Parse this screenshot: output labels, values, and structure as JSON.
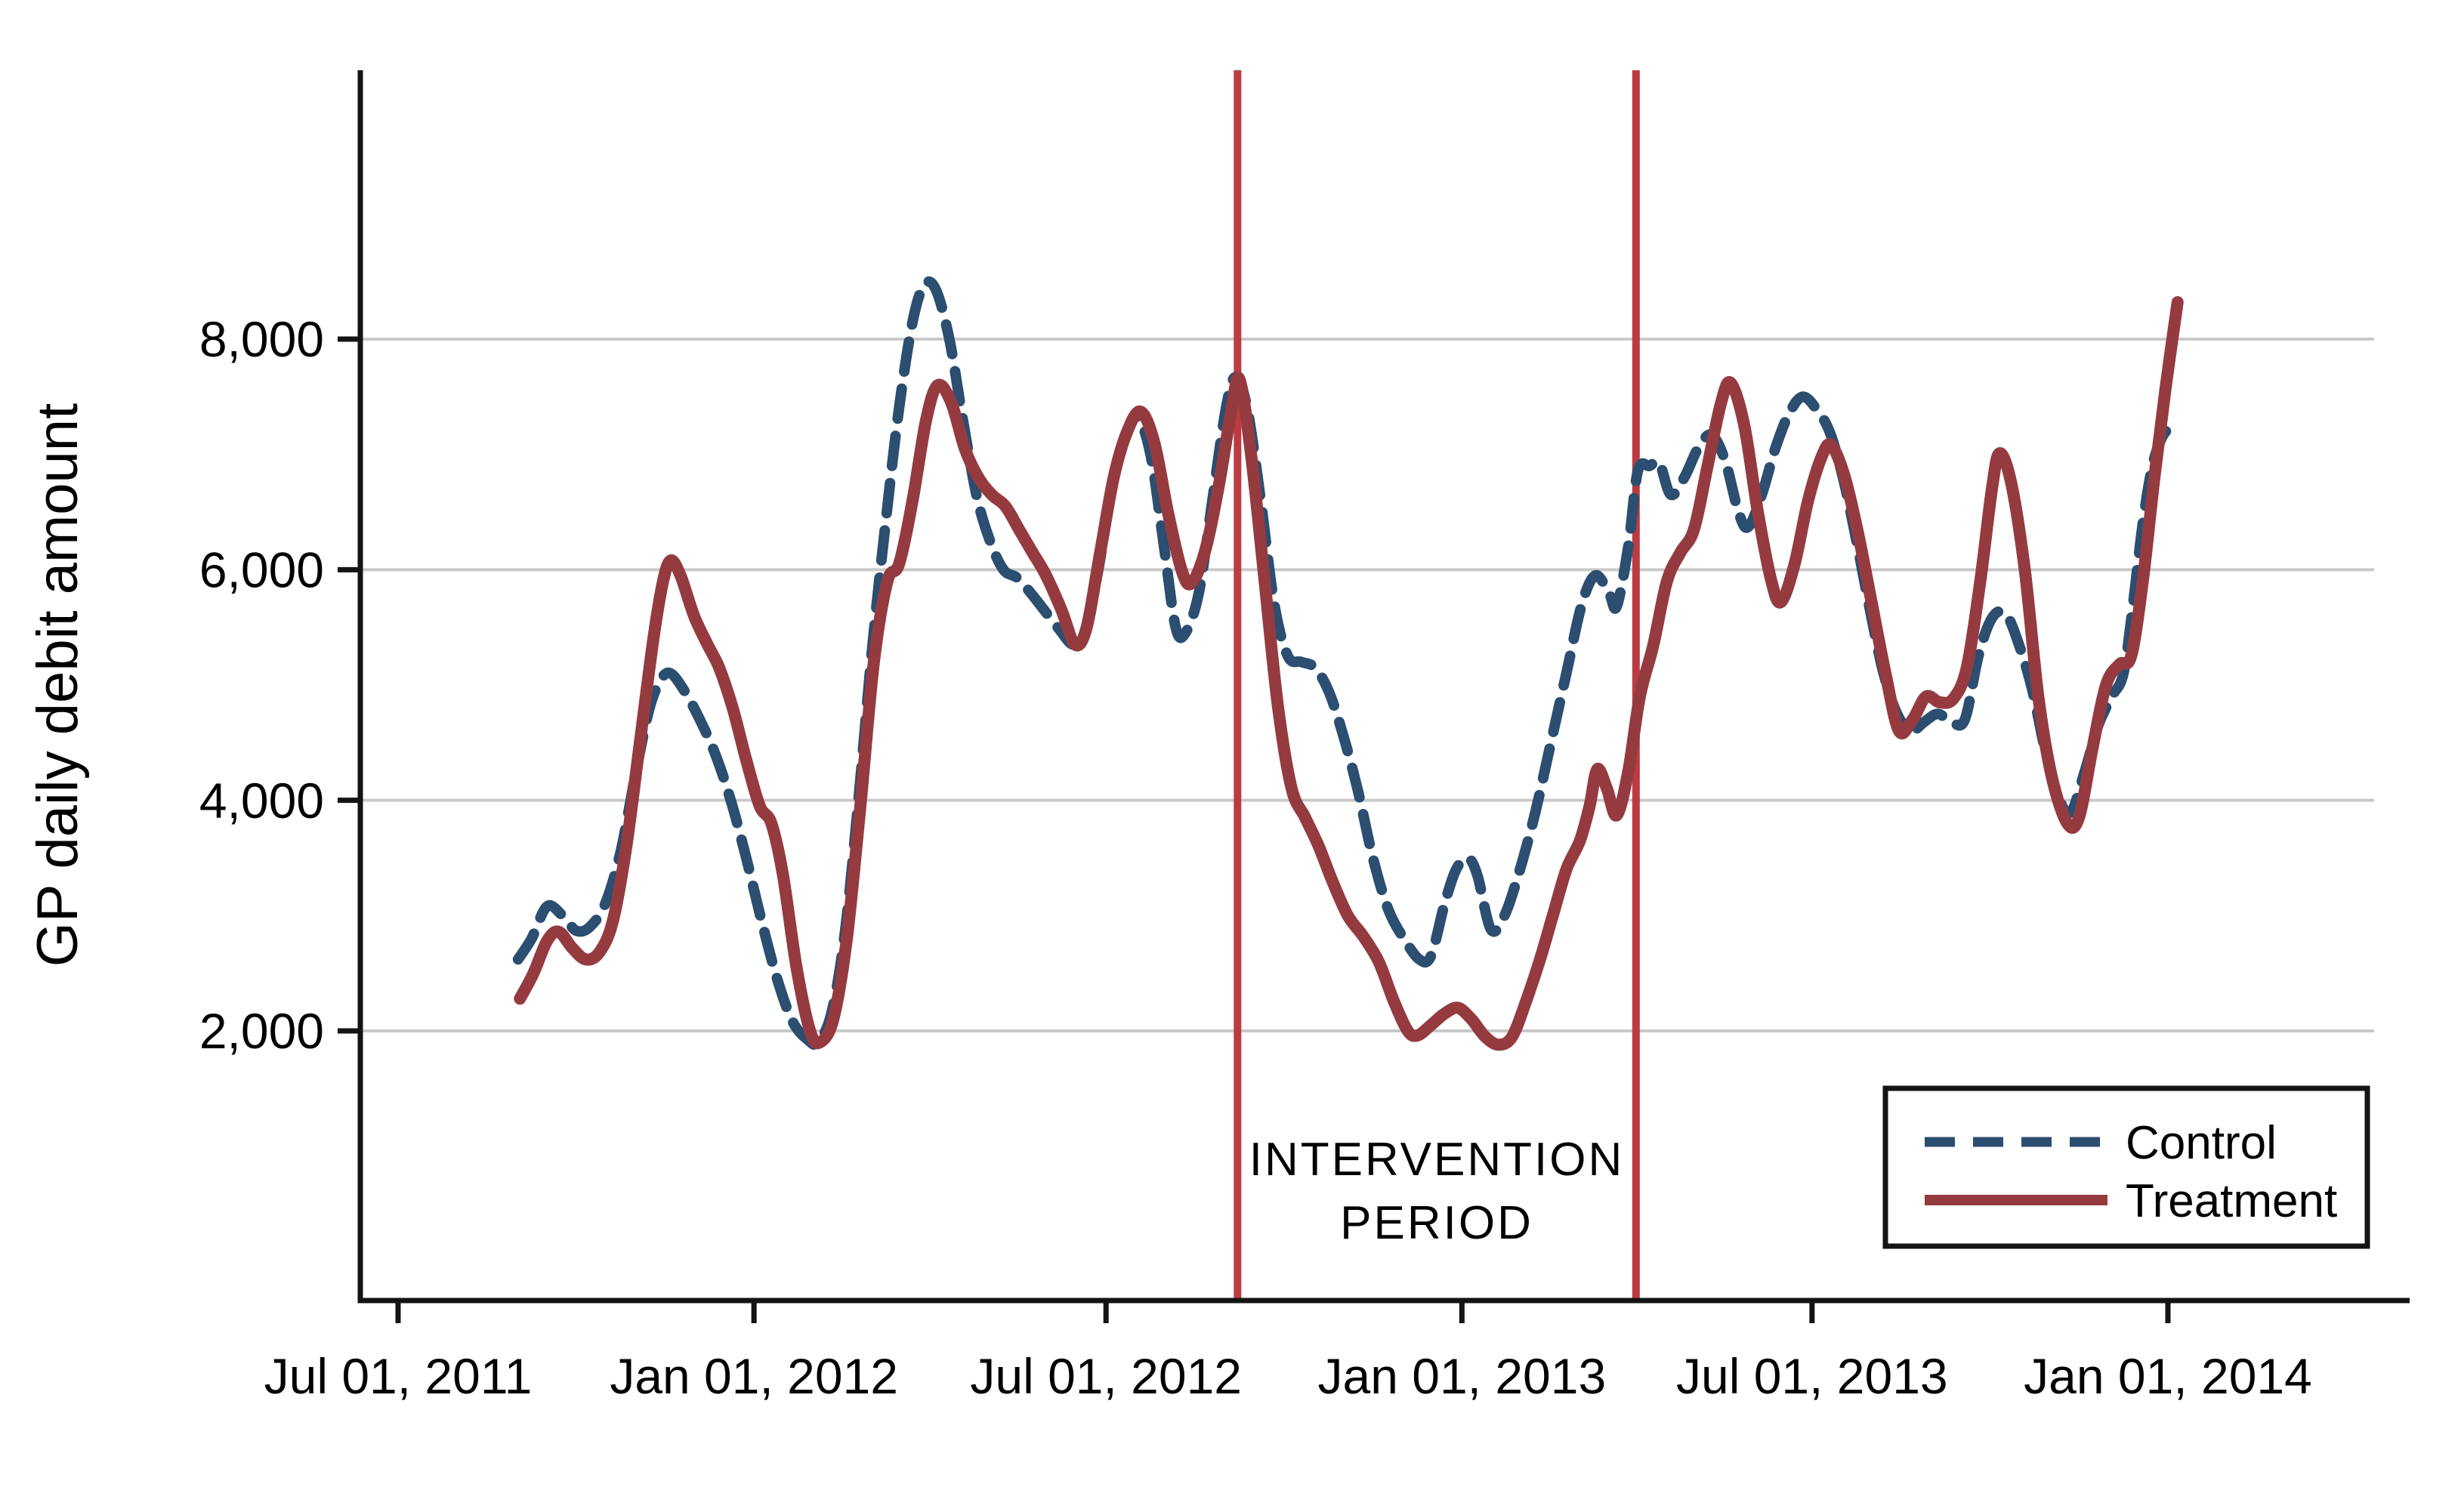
{
  "chart_data": {
    "type": "line",
    "title": "",
    "xlabel": "",
    "ylabel": "GP daily debit amount",
    "grid": "horizontal",
    "ylim": [
      -340,
      10330
    ],
    "x_domain": {
      "start": "2011-07-01",
      "end": "2014-01-01"
    },
    "y_ticks": [
      {
        "value": 2000,
        "label": "2,000"
      },
      {
        "value": 4000,
        "label": "4,000"
      },
      {
        "value": 6000,
        "label": "6,000"
      },
      {
        "value": 8000,
        "label": "8,000"
      }
    ],
    "x_ticks": [
      {
        "date": "2011-07-01",
        "label": "Jul 01, 2011"
      },
      {
        "date": "2012-01-01",
        "label": "Jan 01, 2012"
      },
      {
        "date": "2012-07-01",
        "label": "Jul 01, 2012"
      },
      {
        "date": "2013-01-01",
        "label": "Jan 01, 2013"
      },
      {
        "date": "2013-07-01",
        "label": "Jul 01, 2013"
      },
      {
        "date": "2014-01-01",
        "label": "Jan 01, 2014"
      }
    ],
    "colors": {
      "control": "#2b4e71",
      "treatment": "#953b40",
      "vline": "#bc3b42",
      "intervention_text": "#e23b2e",
      "gridline": "#c9c9c9",
      "axis": "#141414"
    },
    "intervention": {
      "label": "INTERVENTION PERIOD",
      "label_line1": "INTERVENTION",
      "label_line2": "PERIOD",
      "start_date": "2012-09-07",
      "end_date": "2013-04-01"
    },
    "legend": {
      "position": "bottom-right",
      "entries": [
        {
          "label": "Control",
          "style": "dashed",
          "color": "#2b4e71"
        },
        {
          "label": "Treatment",
          "style": "solid",
          "color": "#953b40"
        }
      ]
    },
    "series": [
      {
        "name": "Control",
        "style": "dashed",
        "color": "#2b4e71",
        "points": [
          [
            "2011-09-01",
            2620
          ],
          [
            "2011-09-08",
            2800
          ],
          [
            "2011-09-16",
            3080
          ],
          [
            "2011-09-24",
            3000
          ],
          [
            "2011-10-01",
            2870
          ],
          [
            "2011-10-08",
            2900
          ],
          [
            "2011-10-16",
            3100
          ],
          [
            "2011-10-24",
            3550
          ],
          [
            "2011-11-01",
            4250
          ],
          [
            "2011-11-08",
            4800
          ],
          [
            "2011-11-14",
            5050
          ],
          [
            "2011-11-19",
            5100
          ],
          [
            "2011-11-26",
            4950
          ],
          [
            "2011-12-04",
            4700
          ],
          [
            "2011-12-12",
            4400
          ],
          [
            "2011-12-20",
            4000
          ],
          [
            "2011-12-28",
            3500
          ],
          [
            "2012-01-05",
            2950
          ],
          [
            "2012-01-13",
            2450
          ],
          [
            "2012-01-21",
            2080
          ],
          [
            "2012-01-29",
            1920
          ],
          [
            "2012-02-03",
            1900
          ],
          [
            "2012-02-10",
            2150
          ],
          [
            "2012-02-17",
            2850
          ],
          [
            "2012-02-24",
            4000
          ],
          [
            "2012-03-02",
            5300
          ],
          [
            "2012-03-09",
            6400
          ],
          [
            "2012-03-16",
            7400
          ],
          [
            "2012-03-23",
            8150
          ],
          [
            "2012-03-29",
            8470
          ],
          [
            "2012-04-04",
            8430
          ],
          [
            "2012-04-11",
            8000
          ],
          [
            "2012-04-18",
            7300
          ],
          [
            "2012-04-25",
            6650
          ],
          [
            "2012-05-02",
            6250
          ],
          [
            "2012-05-09",
            6000
          ],
          [
            "2012-05-16",
            5930
          ],
          [
            "2012-05-23",
            5800
          ],
          [
            "2012-05-30",
            5650
          ],
          [
            "2012-06-07",
            5480
          ],
          [
            "2012-06-14",
            5350
          ],
          [
            "2012-06-20",
            5450
          ],
          [
            "2012-06-27",
            6000
          ],
          [
            "2012-07-04",
            6700
          ],
          [
            "2012-07-11",
            7150
          ],
          [
            "2012-07-17",
            7330
          ],
          [
            "2012-07-24",
            7000
          ],
          [
            "2012-07-31",
            6200
          ],
          [
            "2012-08-06",
            5500
          ],
          [
            "2012-08-11",
            5450
          ],
          [
            "2012-08-18",
            5800
          ],
          [
            "2012-08-25",
            6600
          ],
          [
            "2012-09-01",
            7400
          ],
          [
            "2012-09-06",
            7670
          ],
          [
            "2012-09-12",
            7400
          ],
          [
            "2012-09-19",
            6600
          ],
          [
            "2012-09-26",
            5700
          ],
          [
            "2012-10-03",
            5250
          ],
          [
            "2012-10-10",
            5200
          ],
          [
            "2012-10-17",
            5150
          ],
          [
            "2012-10-24",
            4950
          ],
          [
            "2012-10-31",
            4600
          ],
          [
            "2012-11-08",
            4100
          ],
          [
            "2012-11-16",
            3500
          ],
          [
            "2012-11-24",
            3050
          ],
          [
            "2012-12-02",
            2800
          ],
          [
            "2012-12-10",
            2620
          ],
          [
            "2012-12-16",
            2650
          ],
          [
            "2012-12-23",
            3100
          ],
          [
            "2012-12-29",
            3400
          ],
          [
            "2013-01-04",
            3500
          ],
          [
            "2013-01-09",
            3350
          ],
          [
            "2013-01-16",
            2880
          ],
          [
            "2013-01-23",
            3000
          ],
          [
            "2013-01-31",
            3400
          ],
          [
            "2013-02-08",
            3900
          ],
          [
            "2013-02-16",
            4500
          ],
          [
            "2013-02-24",
            5100
          ],
          [
            "2013-03-04",
            5700
          ],
          [
            "2013-03-11",
            5950
          ],
          [
            "2013-03-18",
            5800
          ],
          [
            "2013-03-22",
            5680
          ],
          [
            "2013-03-28",
            6200
          ],
          [
            "2013-04-02",
            6860
          ],
          [
            "2013-04-08",
            6900
          ],
          [
            "2013-04-13",
            6930
          ],
          [
            "2013-04-19",
            6650
          ],
          [
            "2013-04-26",
            6800
          ],
          [
            "2013-05-03",
            7050
          ],
          [
            "2013-05-10",
            7170
          ],
          [
            "2013-05-17",
            6950
          ],
          [
            "2013-05-24",
            6500
          ],
          [
            "2013-05-29",
            6370
          ],
          [
            "2013-06-05",
            6650
          ],
          [
            "2013-06-12",
            7050
          ],
          [
            "2013-06-19",
            7350
          ],
          [
            "2013-06-26",
            7500
          ],
          [
            "2013-07-03",
            7400
          ],
          [
            "2013-07-10",
            7200
          ],
          [
            "2013-07-17",
            6800
          ],
          [
            "2013-07-24",
            6250
          ],
          [
            "2013-07-31",
            5650
          ],
          [
            "2013-08-07",
            5100
          ],
          [
            "2013-08-14",
            4750
          ],
          [
            "2013-08-21",
            4600
          ],
          [
            "2013-08-28",
            4680
          ],
          [
            "2013-09-04",
            4750
          ],
          [
            "2013-09-11",
            4680
          ],
          [
            "2013-09-18",
            4700
          ],
          [
            "2013-09-25",
            5250
          ],
          [
            "2013-10-02",
            5580
          ],
          [
            "2013-10-09",
            5620
          ],
          [
            "2013-10-16",
            5350
          ],
          [
            "2013-10-23",
            4950
          ],
          [
            "2013-10-30",
            4400
          ],
          [
            "2013-11-06",
            4000
          ],
          [
            "2013-11-12",
            3900
          ],
          [
            "2013-11-19",
            4250
          ],
          [
            "2013-11-26",
            4650
          ],
          [
            "2013-12-03",
            4900
          ],
          [
            "2013-12-09",
            5100
          ],
          [
            "2013-12-14",
            5700
          ],
          [
            "2013-12-19",
            6400
          ],
          [
            "2013-12-24",
            6900
          ],
          [
            "2013-12-29",
            7150
          ],
          [
            "2014-01-03",
            7250
          ]
        ]
      },
      {
        "name": "Treatment",
        "style": "solid",
        "color": "#953b40",
        "points": [
          [
            "2011-09-02",
            2280
          ],
          [
            "2011-09-09",
            2500
          ],
          [
            "2011-09-16",
            2780
          ],
          [
            "2011-09-22",
            2860
          ],
          [
            "2011-09-29",
            2720
          ],
          [
            "2011-10-06",
            2620
          ],
          [
            "2011-10-13",
            2680
          ],
          [
            "2011-10-20",
            2950
          ],
          [
            "2011-10-27",
            3600
          ],
          [
            "2011-11-03",
            4500
          ],
          [
            "2011-11-10",
            5400
          ],
          [
            "2011-11-15",
            5900
          ],
          [
            "2011-11-19",
            6080
          ],
          [
            "2011-11-24",
            5950
          ],
          [
            "2011-12-01",
            5600
          ],
          [
            "2011-12-08",
            5350
          ],
          [
            "2011-12-14",
            5150
          ],
          [
            "2011-12-21",
            4800
          ],
          [
            "2011-12-28",
            4350
          ],
          [
            "2012-01-04",
            3950
          ],
          [
            "2012-01-10",
            3800
          ],
          [
            "2012-01-16",
            3350
          ],
          [
            "2012-01-23",
            2550
          ],
          [
            "2012-01-30",
            2000
          ],
          [
            "2012-02-04",
            1900
          ],
          [
            "2012-02-11",
            2100
          ],
          [
            "2012-02-18",
            2800
          ],
          [
            "2012-02-25",
            3950
          ],
          [
            "2012-03-03",
            5200
          ],
          [
            "2012-03-10",
            5900
          ],
          [
            "2012-03-16",
            6050
          ],
          [
            "2012-03-23",
            6600
          ],
          [
            "2012-03-30",
            7300
          ],
          [
            "2012-04-05",
            7600
          ],
          [
            "2012-04-12",
            7450
          ],
          [
            "2012-04-19",
            7050
          ],
          [
            "2012-04-26",
            6800
          ],
          [
            "2012-05-03",
            6650
          ],
          [
            "2012-05-10",
            6550
          ],
          [
            "2012-05-17",
            6350
          ],
          [
            "2012-05-24",
            6150
          ],
          [
            "2012-05-31",
            5950
          ],
          [
            "2012-06-08",
            5650
          ],
          [
            "2012-06-15",
            5350
          ],
          [
            "2012-06-21",
            5500
          ],
          [
            "2012-06-28",
            6150
          ],
          [
            "2012-07-05",
            6800
          ],
          [
            "2012-07-12",
            7200
          ],
          [
            "2012-07-19",
            7370
          ],
          [
            "2012-07-26",
            7100
          ],
          [
            "2012-08-02",
            6500
          ],
          [
            "2012-08-09",
            6000
          ],
          [
            "2012-08-14",
            5880
          ],
          [
            "2012-08-21",
            6150
          ],
          [
            "2012-08-28",
            6700
          ],
          [
            "2012-09-04",
            7400
          ],
          [
            "2012-09-08",
            7650
          ],
          [
            "2012-09-14",
            7000
          ],
          [
            "2012-09-21",
            5900
          ],
          [
            "2012-09-28",
            4800
          ],
          [
            "2012-10-05",
            4100
          ],
          [
            "2012-10-12",
            3850
          ],
          [
            "2012-10-19",
            3600
          ],
          [
            "2012-10-26",
            3300
          ],
          [
            "2012-11-03",
            3000
          ],
          [
            "2012-11-11",
            2820
          ],
          [
            "2012-11-19",
            2600
          ],
          [
            "2012-11-27",
            2250
          ],
          [
            "2012-12-04",
            2000
          ],
          [
            "2012-12-09",
            1960
          ],
          [
            "2012-12-16",
            2050
          ],
          [
            "2012-12-23",
            2150
          ],
          [
            "2012-12-30",
            2200
          ],
          [
            "2013-01-06",
            2100
          ],
          [
            "2013-01-13",
            1950
          ],
          [
            "2013-01-20",
            1880
          ],
          [
            "2013-01-27",
            1950
          ],
          [
            "2013-02-03",
            2250
          ],
          [
            "2013-02-10",
            2600
          ],
          [
            "2013-02-17",
            3000
          ],
          [
            "2013-02-24",
            3400
          ],
          [
            "2013-03-03",
            3650
          ],
          [
            "2013-03-08",
            3950
          ],
          [
            "2013-03-12",
            4270
          ],
          [
            "2013-03-17",
            4100
          ],
          [
            "2013-03-22",
            3870
          ],
          [
            "2013-03-28",
            4250
          ],
          [
            "2013-04-03",
            4900
          ],
          [
            "2013-04-10",
            5350
          ],
          [
            "2013-04-17",
            5900
          ],
          [
            "2013-04-24",
            6150
          ],
          [
            "2013-05-01",
            6350
          ],
          [
            "2013-05-08",
            6900
          ],
          [
            "2013-05-15",
            7450
          ],
          [
            "2013-05-20",
            7620
          ],
          [
            "2013-05-27",
            7250
          ],
          [
            "2013-06-03",
            6500
          ],
          [
            "2013-06-10",
            5900
          ],
          [
            "2013-06-15",
            5720
          ],
          [
            "2013-06-22",
            6050
          ],
          [
            "2013-06-29",
            6600
          ],
          [
            "2013-07-06",
            6980
          ],
          [
            "2013-07-11",
            7080
          ],
          [
            "2013-07-18",
            6800
          ],
          [
            "2013-07-25",
            6300
          ],
          [
            "2013-08-01",
            5700
          ],
          [
            "2013-08-08",
            5100
          ],
          [
            "2013-08-15",
            4600
          ],
          [
            "2013-08-22",
            4700
          ],
          [
            "2013-08-29",
            4900
          ],
          [
            "2013-09-05",
            4850
          ],
          [
            "2013-09-12",
            4880
          ],
          [
            "2013-09-19",
            5150
          ],
          [
            "2013-09-26",
            5900
          ],
          [
            "2013-10-02",
            6700
          ],
          [
            "2013-10-06",
            7010
          ],
          [
            "2013-10-12",
            6750
          ],
          [
            "2013-10-19",
            6000
          ],
          [
            "2013-10-26",
            4900
          ],
          [
            "2013-11-02",
            4200
          ],
          [
            "2013-11-10",
            3800
          ],
          [
            "2013-11-16",
            3850
          ],
          [
            "2013-11-23",
            4450
          ],
          [
            "2013-11-30",
            5000
          ],
          [
            "2013-12-07",
            5180
          ],
          [
            "2013-12-13",
            5250
          ],
          [
            "2013-12-19",
            5900
          ],
          [
            "2013-12-25",
            6800
          ],
          [
            "2013-12-31",
            7600
          ],
          [
            "2014-01-06",
            8320
          ]
        ]
      }
    ]
  }
}
